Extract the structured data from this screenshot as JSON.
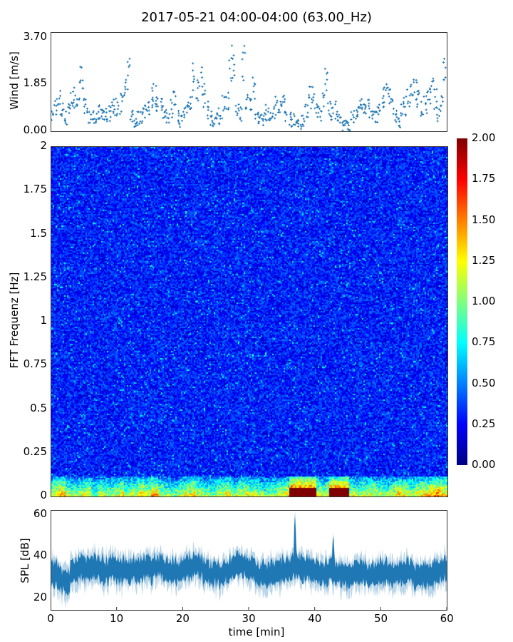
{
  "title": "2017-05-21 04:00-04:00 (63.00_Hz)",
  "chart_data": [
    {
      "type": "scatter",
      "name": "wind",
      "ylabel": "Wind [m/s]",
      "ylim": [
        0,
        3.7
      ],
      "yticks": [
        "3.70",
        "1.85",
        "0.00"
      ],
      "xlim": [
        0,
        60
      ],
      "sample_interval_min": 0.5,
      "color": "#1f77b4",
      "values": [
        0.6,
        1.0,
        1.2,
        0.8,
        0.5,
        0.9,
        1.2,
        1.3,
        1.5,
        2.0,
        0.9,
        0.6,
        0.5,
        0.4,
        0.7,
        0.8,
        0.6,
        0.7,
        0.8,
        0.9,
        1.0,
        1.1,
        1.5,
        2.2,
        0.6,
        0.3,
        0.5,
        0.6,
        0.8,
        1.0,
        1.3,
        1.4,
        1.2,
        0.9,
        0.8,
        0.6,
        0.9,
        1.2,
        0.5,
        0.4,
        0.7,
        0.9,
        1.2,
        2.2,
        1.6,
        2.0,
        1.4,
        0.8,
        0.5,
        0.3,
        0.6,
        0.4,
        1.1,
        1.3,
        2.6,
        2.3,
        1.0,
        0.7,
        2.8,
        1.1,
        0.9,
        1.6,
        0.6,
        0.4,
        0.5,
        0.7,
        0.6,
        0.8,
        1.0,
        0.9,
        1.1,
        0.7,
        0.5,
        0.4,
        0.3,
        0.3,
        0.4,
        0.9,
        1.3,
        1.6,
        0.8,
        0.7,
        1.1,
        2.0,
        0.9,
        0.6,
        0.8,
        0.4,
        0.2,
        0.2,
        0.2,
        0.5,
        0.8,
        0.9,
        1.0,
        0.8,
        0.9,
        0.8,
        0.5,
        0.7,
        1.2,
        1.5,
        1.6,
        0.9,
        0.6,
        0.3,
        0.8,
        1.0,
        1.2,
        1.5,
        1.8,
        1.2,
        0.8,
        1.0,
        1.3,
        1.6,
        1.2,
        0.7,
        1.2,
        2.6
      ]
    },
    {
      "type": "heatmap",
      "name": "spectrogram",
      "ylabel": "FFT Frequenz [Hz]",
      "ylim": [
        0,
        2
      ],
      "yticks": [
        "0",
        "0.25",
        "0.5",
        "0.75",
        "1",
        "1.25",
        "1.5",
        "1.75",
        "2"
      ],
      "xlim": [
        0,
        60
      ],
      "background_level": 0.3,
      "low_band_per_min": [
        1.3,
        1.5,
        1.2,
        1.1,
        1.2,
        1.3,
        1.0,
        1.2,
        1.1,
        1.2,
        1.3,
        1.1,
        1.2,
        1.4,
        1.3,
        1.5,
        1.2,
        1.1,
        1.0,
        1.2,
        1.3,
        1.4,
        1.2,
        1.1,
        1.0,
        1.2,
        1.3,
        1.1,
        1.2,
        1.3,
        1.2,
        1.1,
        1.0,
        1.1,
        1.2,
        1.3,
        2.0,
        2.0,
        2.0,
        2.0,
        1.3,
        1.2,
        1.9,
        1.9,
        1.9,
        1.2,
        1.1,
        1.2,
        1.3,
        1.2,
        1.1,
        1.2,
        1.4,
        1.3,
        1.2,
        1.3,
        1.4,
        1.5,
        1.6,
        1.4
      ],
      "colorbar": {
        "range": [
          0,
          2
        ],
        "ticks": [
          "0.00",
          "0.25",
          "0.50",
          "0.75",
          "1.00",
          "1.25",
          "1.50",
          "1.75",
          "2.00"
        ],
        "colormap": "jet"
      }
    },
    {
      "type": "area",
      "name": "spl",
      "ylabel": "SPL [dB]",
      "ylim": [
        15,
        62
      ],
      "yticks": [
        "60",
        "40",
        "20"
      ],
      "xlabel": "time [min]",
      "xticks": [
        "0",
        "10",
        "20",
        "30",
        "40",
        "50",
        "60"
      ],
      "xlim": [
        0,
        60
      ],
      "color": "#1f77b4",
      "mean_per_min": [
        32,
        29,
        28,
        33,
        34,
        34,
        35,
        34,
        33,
        34,
        33,
        33,
        34,
        34,
        35,
        34,
        35,
        33,
        33,
        33,
        35,
        36,
        36,
        33,
        32,
        32,
        33,
        34,
        35,
        36,
        35,
        31,
        31,
        32,
        33,
        34,
        35,
        36,
        34,
        34,
        33,
        32,
        33,
        32,
        31,
        31,
        32,
        32,
        31,
        32,
        32,
        31,
        32,
        32,
        33,
        31,
        31,
        31,
        32,
        34
      ],
      "spikes": [
        {
          "t": 37.0,
          "peak": 60
        },
        {
          "t": 42.8,
          "peak": 52
        }
      ]
    }
  ]
}
